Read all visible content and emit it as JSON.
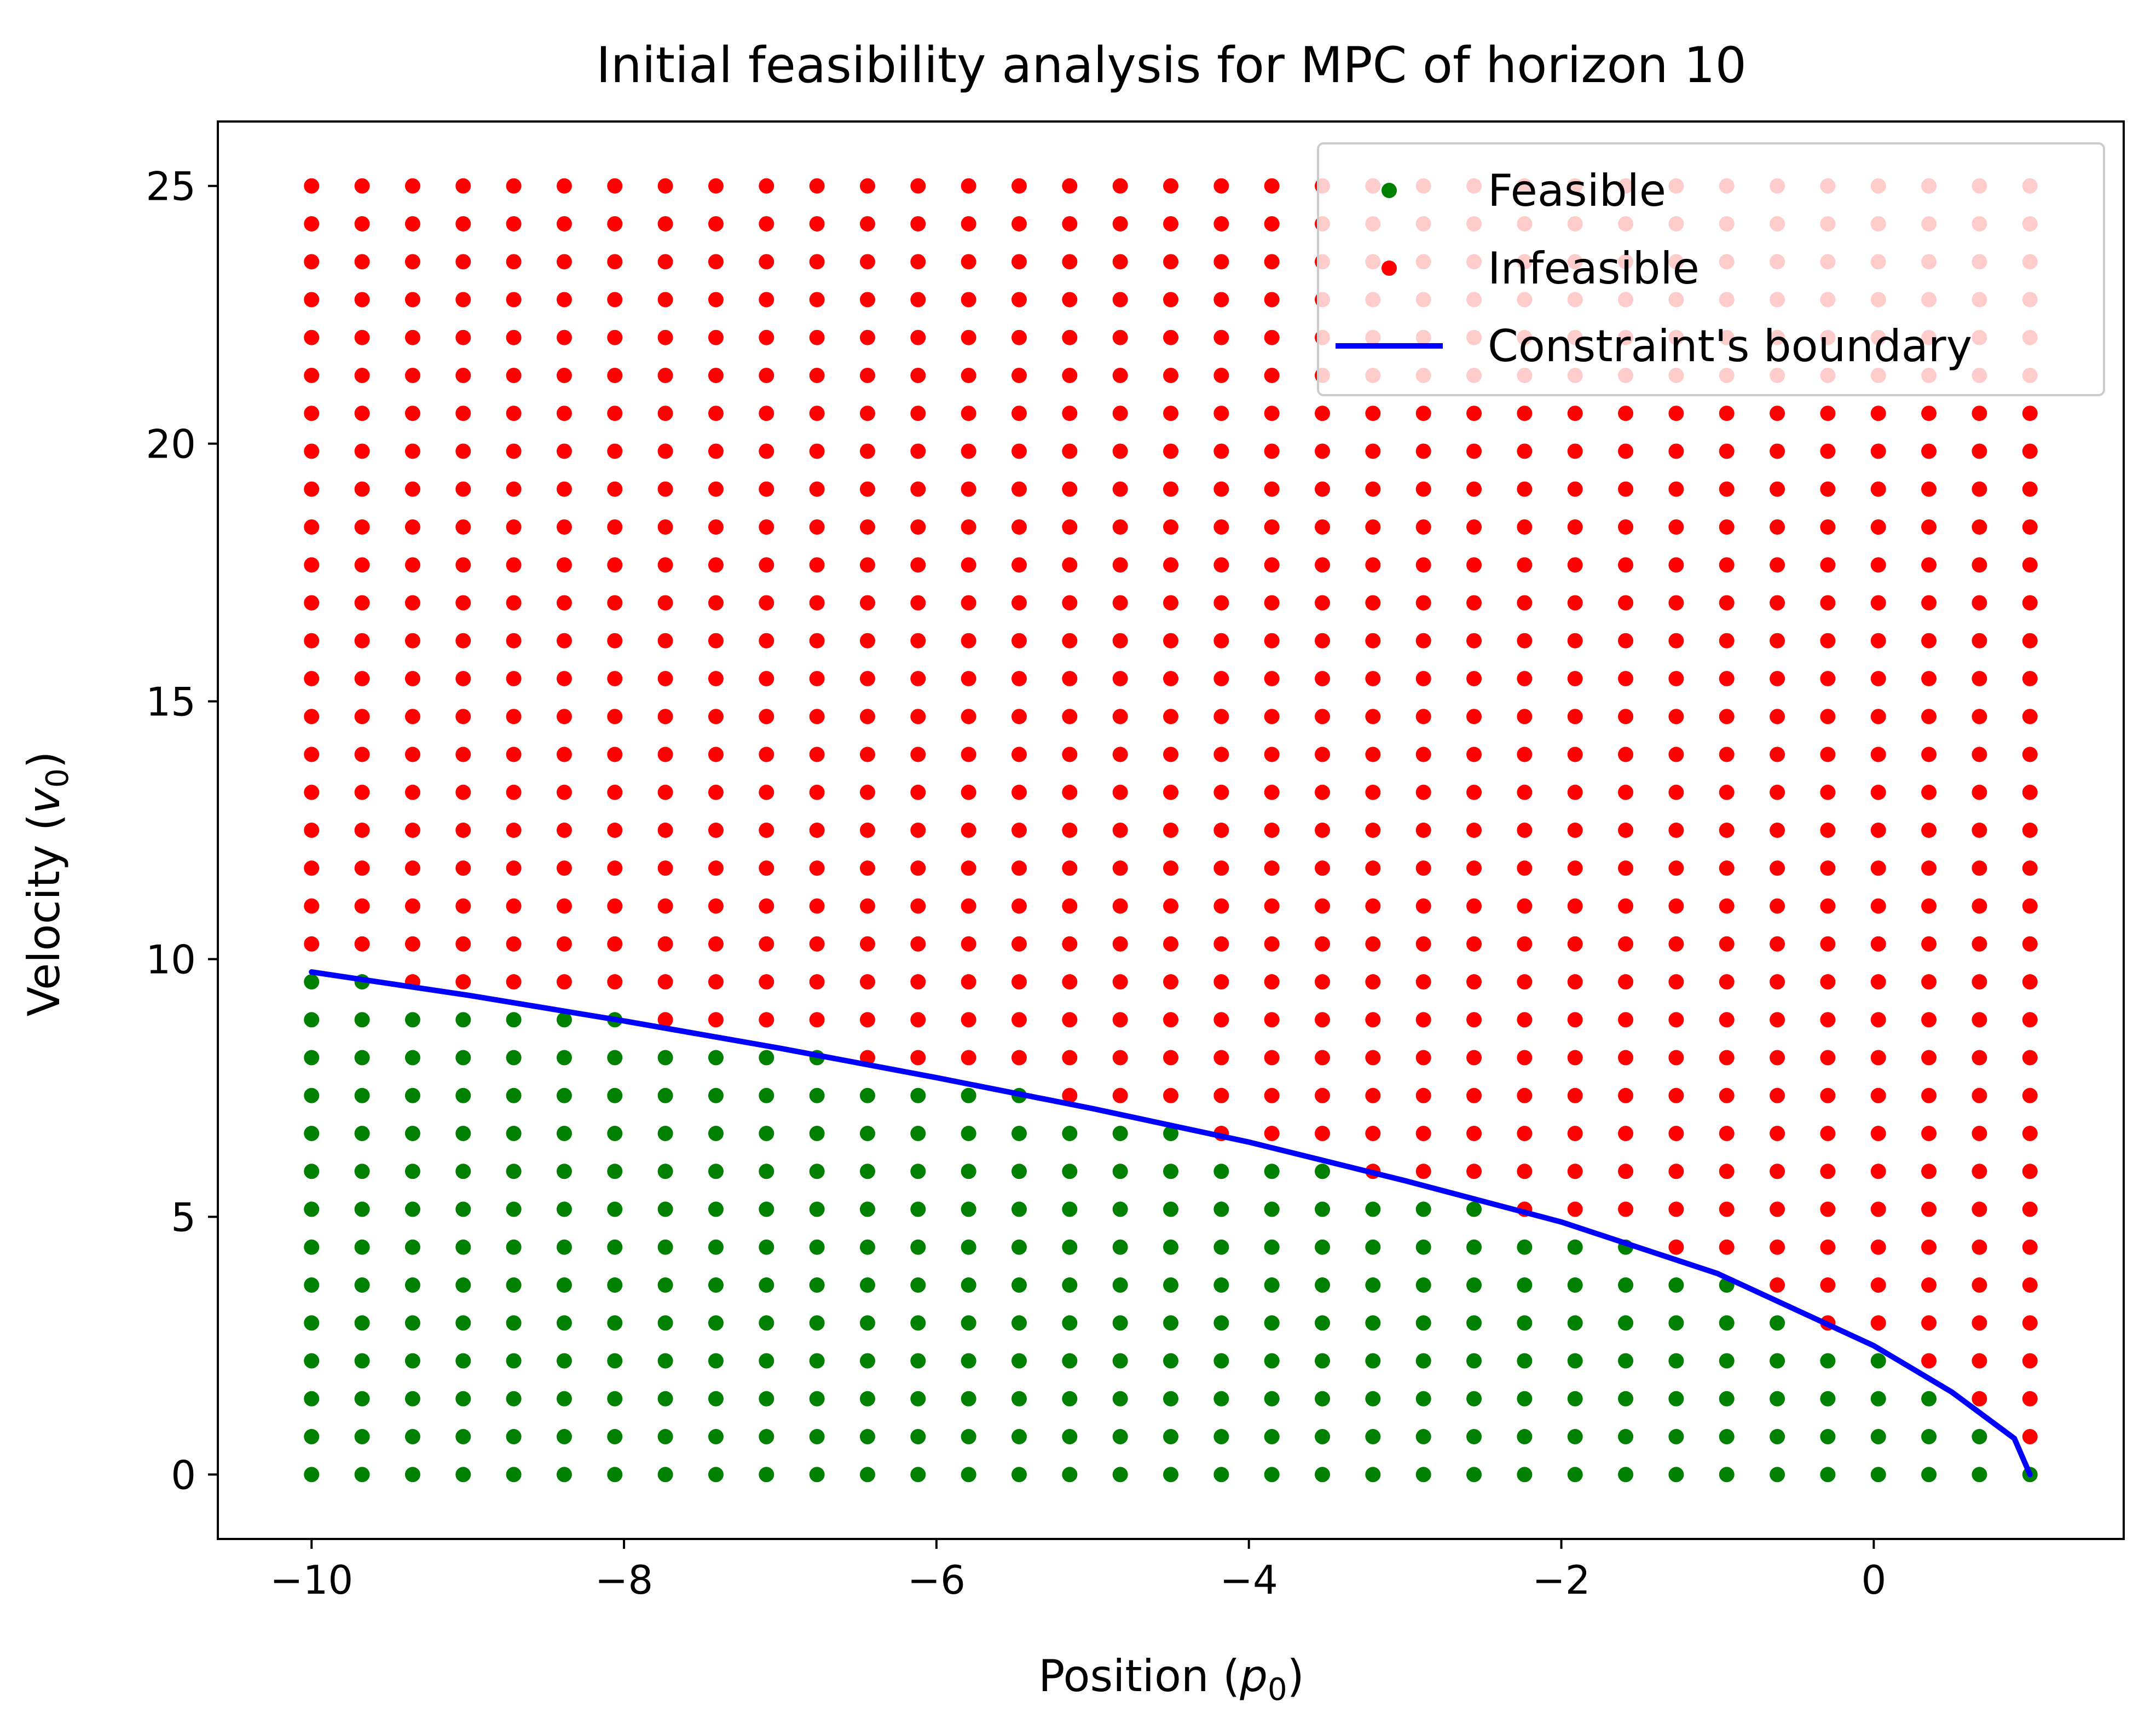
{
  "chart_data": {
    "type": "scatter",
    "title": "Initial feasibility analysis for MPC of horizon 10",
    "xlabel": "Position (p_0)",
    "xlabel_parts": {
      "prefix": "Position (",
      "var": "p",
      "sub": "0",
      "suffix": ")"
    },
    "ylabel": "Velocity (v_0)",
    "ylabel_parts": {
      "prefix": "Velocity (",
      "var": "v",
      "sub": "0",
      "suffix": ")"
    },
    "xlim": [
      -10.6,
      1.6
    ],
    "ylim": [
      -1.25,
      26.25
    ],
    "xticks": [
      -10,
      -8,
      -6,
      -4,
      -2,
      0
    ],
    "xtick_labels": [
      "−10",
      "−8",
      "−6",
      "−4",
      "−2",
      "0"
    ],
    "yticks": [
      0,
      5,
      10,
      15,
      20,
      25
    ],
    "ytick_labels": [
      "0",
      "5",
      "10",
      "15",
      "20",
      "25"
    ],
    "grid": {
      "x_start": -10,
      "x_end": 1,
      "x_count": 35,
      "y_start": 0,
      "y_end": 25,
      "y_count": 35
    },
    "series": [
      {
        "name": "Feasible",
        "color": "#008000",
        "rule": "points on or below the constraint boundary"
      },
      {
        "name": "Infeasible",
        "color": "#ff0000",
        "rule": "points above the constraint boundary"
      }
    ],
    "boundary": {
      "name": "Constraint's boundary",
      "color": "#0000ff",
      "x": [
        -10,
        -9,
        -8,
        -7,
        -6,
        -5,
        -4,
        -3,
        -2,
        -1,
        0,
        0.5,
        0.9,
        1
      ],
      "y": [
        9.75,
        9.3,
        8.8,
        8.27,
        7.7,
        7.1,
        6.45,
        5.7,
        4.9,
        3.9,
        2.5,
        1.6,
        0.7,
        0
      ]
    },
    "legend": {
      "placement": "top-right",
      "entries": [
        "Feasible",
        "Infeasible",
        "Constraint's boundary"
      ]
    }
  }
}
